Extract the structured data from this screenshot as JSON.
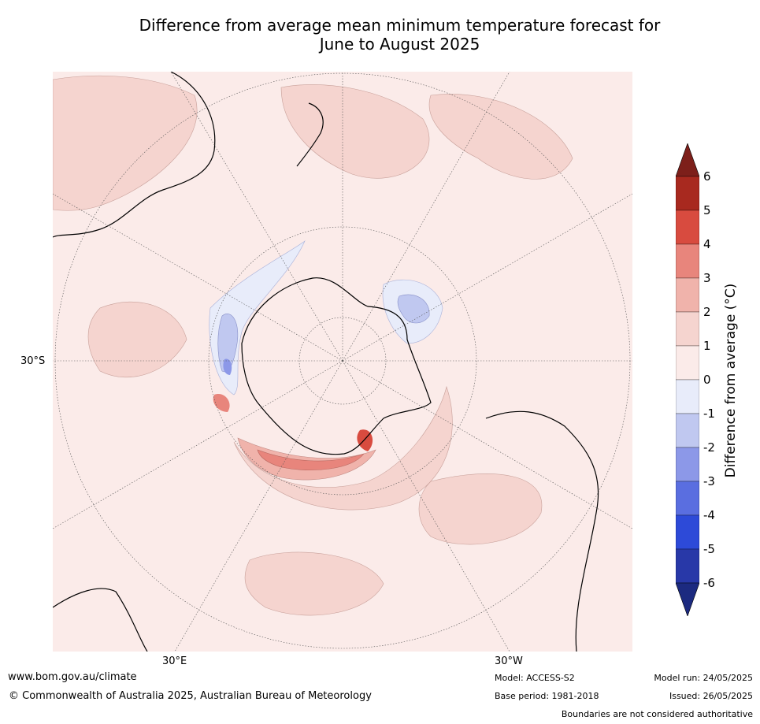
{
  "title_line1": "Difference from average mean minimum temperature forecast for",
  "title_line2": "June to August 2025",
  "map": {
    "lat_label": "30°S",
    "lon_labels": [
      "30°E",
      "30°W"
    ],
    "base_color": "#fbebe9"
  },
  "colorbar": {
    "label": "Difference from average (°C)",
    "ticks": [
      "6",
      "5",
      "4",
      "3",
      "2",
      "1",
      "0",
      "-1",
      "-2",
      "-3",
      "-4",
      "-5",
      "-6"
    ],
    "colors": [
      "#7d1f1a",
      "#a8291f",
      "#d84b3f",
      "#e8857c",
      "#f0b3ab",
      "#f5d4cf",
      "#fbebe9",
      "#e8ecfa",
      "#c0c8f0",
      "#8c98e8",
      "#5a6ee0",
      "#2d4ad8",
      "#2838a8",
      "#1c2a80"
    ]
  },
  "footer": {
    "url": "www.bom.gov.au/climate",
    "copyright": "© Commonwealth of Australia 2025, Australian Bureau of Meteorology",
    "model": "Model: ACCESS-S2",
    "base_period": "Base period: 1981-2018",
    "model_run": "Model run: 24/05/2025",
    "issued": "Issued: 26/05/2025",
    "disclaimer": "Boundaries are not considered authoritative"
  }
}
